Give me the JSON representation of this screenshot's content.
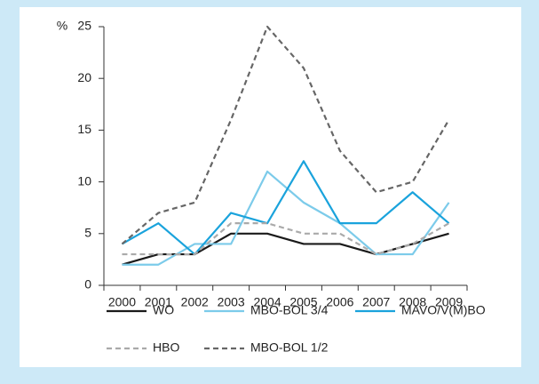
{
  "chart_data": {
    "type": "line",
    "y_label": "%",
    "categories": [
      "2000",
      "2001",
      "2002",
      "2003",
      "2004",
      "2005",
      "2006",
      "2007",
      "2008",
      "2009"
    ],
    "series": [
      {
        "name": "WO",
        "color": "#1a1a1a",
        "dashed": false,
        "values": [
          2,
          3,
          3,
          5,
          5,
          4,
          4,
          3,
          4,
          5
        ]
      },
      {
        "name": "MBO-BOL 3/4",
        "color": "#7ccbea",
        "dashed": false,
        "values": [
          2,
          2,
          4,
          4,
          11,
          8,
          6,
          3,
          3,
          8
        ]
      },
      {
        "name": "MAVO/V(M)BO",
        "color": "#1aa3dc",
        "dashed": false,
        "values": [
          4,
          6,
          3,
          7,
          6,
          12,
          6,
          6,
          9,
          6
        ]
      },
      {
        "name": "HBO",
        "color": "#aaaaaa",
        "dashed": true,
        "values": [
          3,
          3,
          3,
          6,
          6,
          5,
          5,
          3,
          4,
          6
        ]
      },
      {
        "name": "MBO-BOL 1/2",
        "color": "#666666",
        "dashed": true,
        "values": [
          4,
          7,
          8,
          16,
          25,
          21,
          13,
          9,
          10,
          16
        ]
      }
    ],
    "ylim": [
      0,
      25
    ],
    "yticks": [
      0,
      5,
      10,
      15,
      20,
      25
    ],
    "grid": false,
    "legend": "bottom"
  }
}
